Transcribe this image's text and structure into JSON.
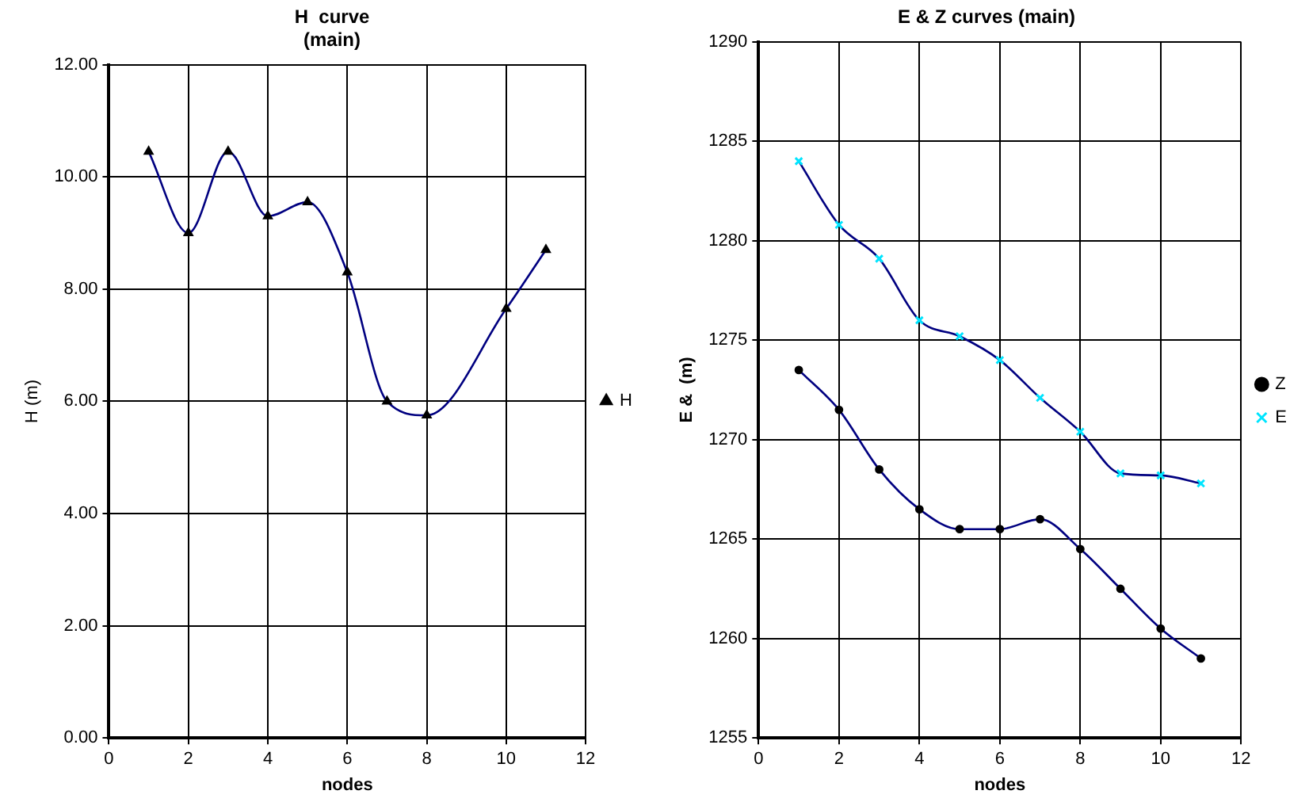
{
  "chart_data": [
    {
      "type": "line",
      "title": "H  curve\n(main)",
      "xlabel": "nodes",
      "ylabel": "H (m)",
      "x": [
        1,
        2,
        3,
        4,
        5,
        6,
        7,
        8,
        10,
        11
      ],
      "series": [
        {
          "name": "H",
          "color": "#000080",
          "marker": "triangle",
          "values": [
            10.45,
            9.0,
            10.45,
            9.3,
            9.55,
            8.3,
            6.0,
            5.75,
            7.65,
            8.7
          ]
        }
      ],
      "xlim": [
        0,
        12
      ],
      "xticks": [
        0,
        2,
        4,
        6,
        8,
        10,
        12
      ],
      "ylim": [
        0,
        12
      ],
      "yticks": [
        {
          "value": 0,
          "label": "0.00"
        },
        {
          "value": 2,
          "label": "2.00"
        },
        {
          "value": 4,
          "label": "4.00"
        },
        {
          "value": 6,
          "label": "6.00"
        },
        {
          "value": 8,
          "label": "8.00"
        },
        {
          "value": 10,
          "label": "10.00"
        },
        {
          "value": 12,
          "label": "12.00"
        }
      ],
      "grid": true,
      "legend": "right"
    },
    {
      "type": "line",
      "title": "E & Z curves (main)",
      "xlabel": "nodes",
      "ylabel": "E &  (m)",
      "x": [
        1,
        2,
        3,
        4,
        5,
        6,
        7,
        8,
        9,
        10,
        11
      ],
      "series": [
        {
          "name": "Z",
          "color": "#000080",
          "marker": "circle",
          "values": [
            1273.5,
            1271.5,
            1268.5,
            1266.5,
            1265.5,
            1265.5,
            1266,
            1264.5,
            1262.5,
            1260.5,
            1259
          ]
        },
        {
          "name": "E",
          "color": "#000080",
          "marker": "cross",
          "values": [
            1284,
            1280.8,
            1279.1,
            1276,
            1275.2,
            1274,
            1272.1,
            1270.4,
            1268.3,
            1268.2,
            1267.8
          ]
        }
      ],
      "xlim": [
        0,
        12
      ],
      "xticks": [
        0,
        2,
        4,
        6,
        8,
        10,
        12
      ],
      "ylim": [
        1255,
        1290
      ],
      "yticks": [
        1255,
        1260,
        1265,
        1270,
        1275,
        1280,
        1285,
        1290
      ],
      "grid": true,
      "legend": "right"
    }
  ]
}
